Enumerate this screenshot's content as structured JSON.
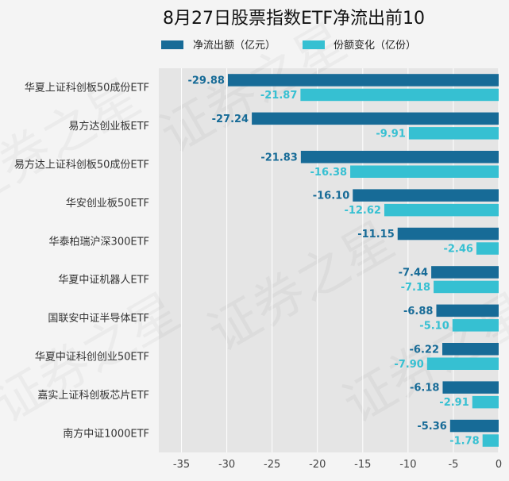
{
  "chart_data": {
    "type": "bar",
    "orientation": "horizontal",
    "title": "8月27日股票指数ETF净流出前10",
    "categories": [
      "华夏上证科创板50成份ETF",
      "易方达创业板ETF",
      "易方达上证科创板50成份ETF",
      "华安创业板50ETF",
      "华泰柏瑞沪深300ETF",
      "华夏中证机器人ETF",
      "国联安中证半导体ETF",
      "华夏中证科创创业50ETF",
      "嘉实上证科创板芯片ETF",
      "南方中证1000ETF"
    ],
    "series": [
      {
        "name": "净流出额（亿元）",
        "color": "#176b97",
        "values": [
          -29.88,
          -27.24,
          -21.83,
          -16.1,
          -11.15,
          -7.44,
          -6.88,
          -6.22,
          -6.18,
          -5.36
        ],
        "labels": [
          "-29.88",
          "-27.24",
          "-21.83",
          "-16.10",
          "-11.15",
          "-7.44",
          "-6.88",
          "-6.22",
          "-6.18",
          "-5.36"
        ]
      },
      {
        "name": "份额变化（亿份）",
        "color": "#36c0d2",
        "values": [
          -21.87,
          -9.91,
          -16.38,
          -12.62,
          -2.46,
          -7.18,
          -5.1,
          -7.9,
          -2.91,
          -1.78
        ],
        "labels": [
          "-21.87",
          "-9.91",
          "-16.38",
          "-12.62",
          "-2.46",
          "-7.18",
          "-5.10",
          "-7.90",
          "-2.91",
          "-1.78"
        ]
      }
    ],
    "xlim": [
      -37.5,
      0
    ],
    "xticks": [
      -35,
      -30,
      -25,
      -20,
      -15,
      -10,
      -5,
      0
    ],
    "xtick_labels": [
      "-35",
      "-30",
      "-25",
      "-20",
      "-15",
      "-10",
      "-5",
      "0"
    ],
    "legend_position": "top",
    "grid": true,
    "watermark": "证券之星"
  }
}
